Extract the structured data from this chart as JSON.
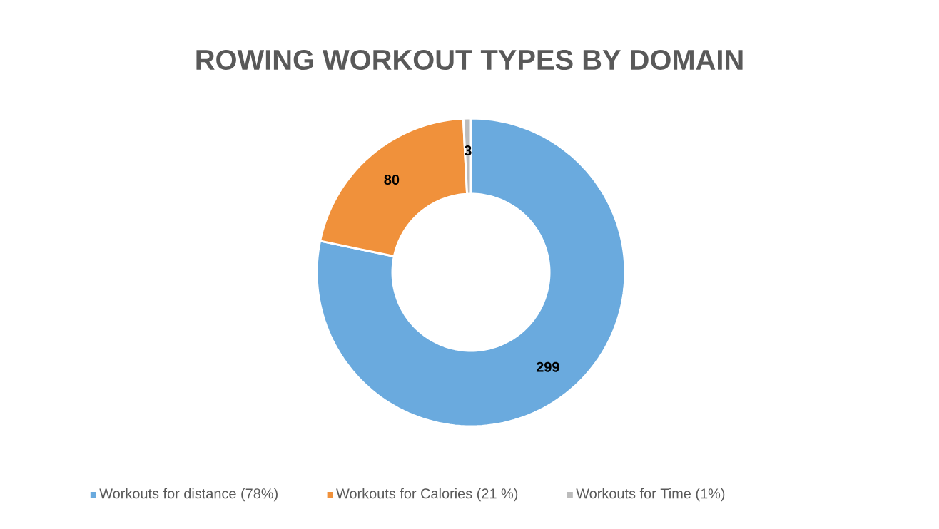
{
  "chart_data": {
    "type": "donut",
    "title": "ROWING WORKOUT TYPES BY DOMAIN",
    "categories": [
      "Workouts for distance (78%)",
      "Workouts for Calories (21 %)",
      "Workouts for Time (1%)"
    ],
    "values": [
      299,
      80,
      3
    ],
    "colors": [
      "#6aaade",
      "#f0913b",
      "#bcbcbc"
    ],
    "data_labels": true,
    "legend": "bottom"
  }
}
